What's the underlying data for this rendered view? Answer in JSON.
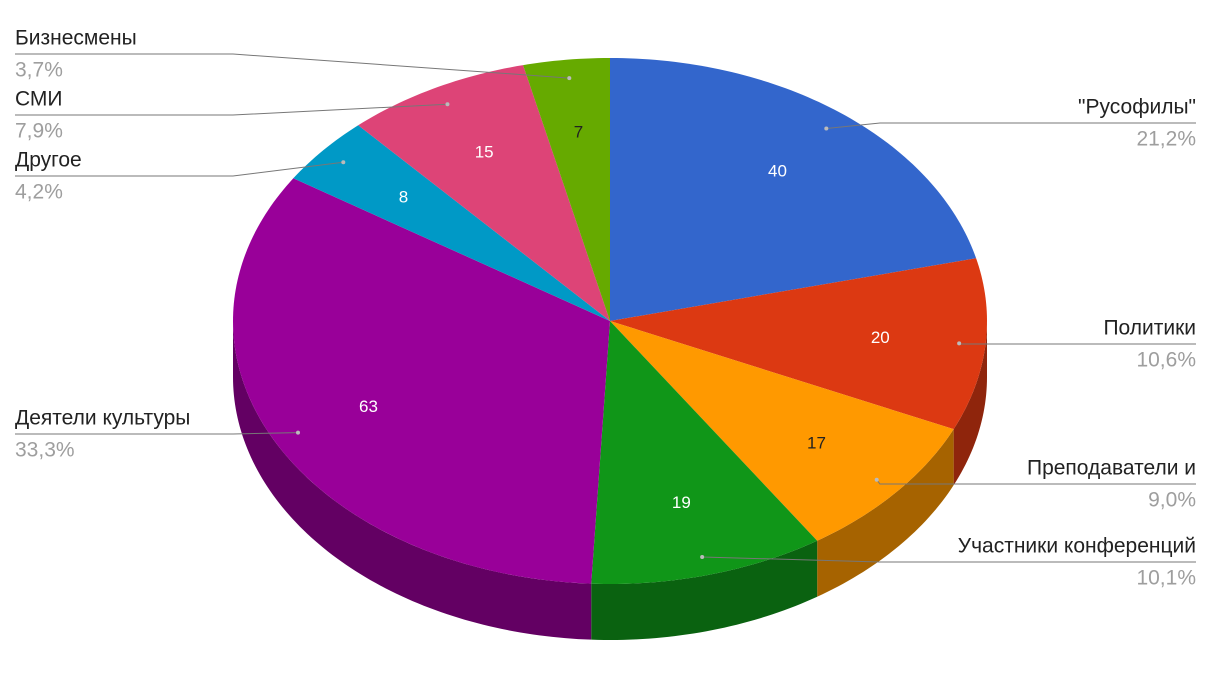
{
  "chart_data": {
    "type": "pie",
    "three_d": true,
    "categories": [
      "\"Русофилы\"",
      "Политики",
      "Преподаватели и",
      "Участники конференций",
      "Деятели культуры",
      "Другое",
      "СМИ",
      "Бизнесмены"
    ],
    "values": [
      40,
      20,
      17,
      19,
      63,
      8,
      15,
      7
    ],
    "percent_labels": [
      "21,2%",
      "10,6%",
      "9,0%",
      "10,1%",
      "33,3%",
      "4,2%",
      "7,9%",
      "3,7%"
    ],
    "colors": [
      "#3366cc",
      "#dc3912",
      "#ff9900",
      "#109618",
      "#990099",
      "#0099c6",
      "#dd4477",
      "#66aa00"
    ]
  }
}
